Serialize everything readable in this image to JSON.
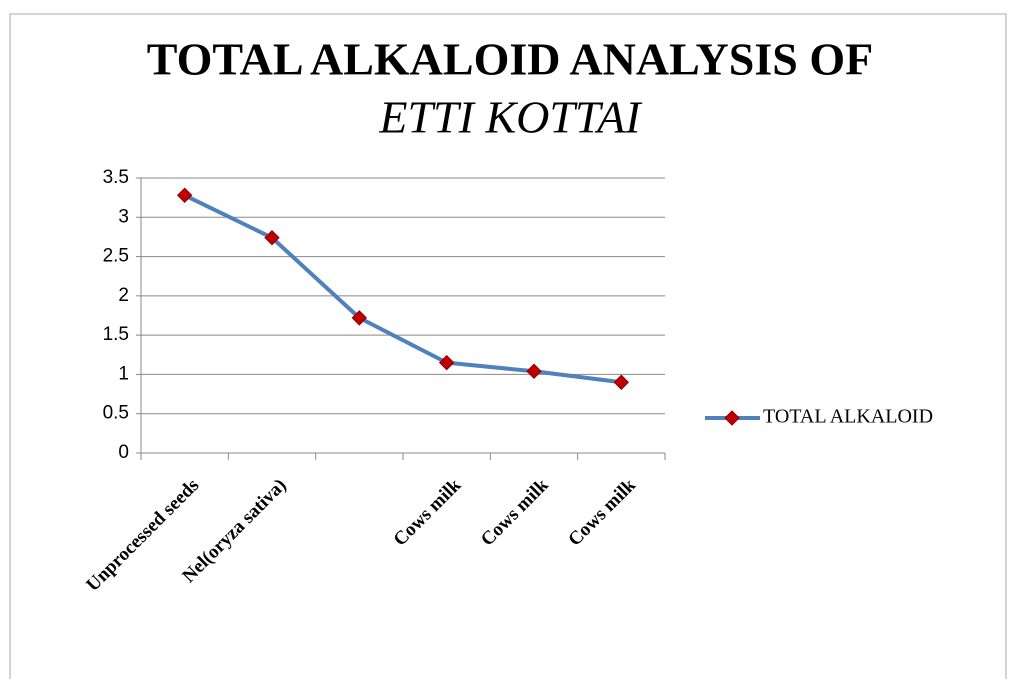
{
  "chart_data": {
    "type": "line",
    "title": "TOTAL ALKALOID ANALYSIS OF",
    "subtitle": "ETTI KOTTAI",
    "categories": [
      "Unprocessed seeds",
      "Nel(oryza sativa)",
      null,
      "Cows milk",
      "Cows milk",
      "Cows milk"
    ],
    "series": [
      {
        "name": "TOTAL ALKALOID",
        "color": "#4f81bd",
        "marker_color": "#c00000",
        "values": [
          3.28,
          2.74,
          1.72,
          1.15,
          1.04,
          0.9
        ]
      }
    ],
    "ylim": [
      0,
      3.5
    ],
    "yticks": [
      0,
      0.5,
      1,
      1.5,
      2,
      2.5,
      3,
      3.5
    ],
    "grid": true,
    "legend": "right"
  }
}
